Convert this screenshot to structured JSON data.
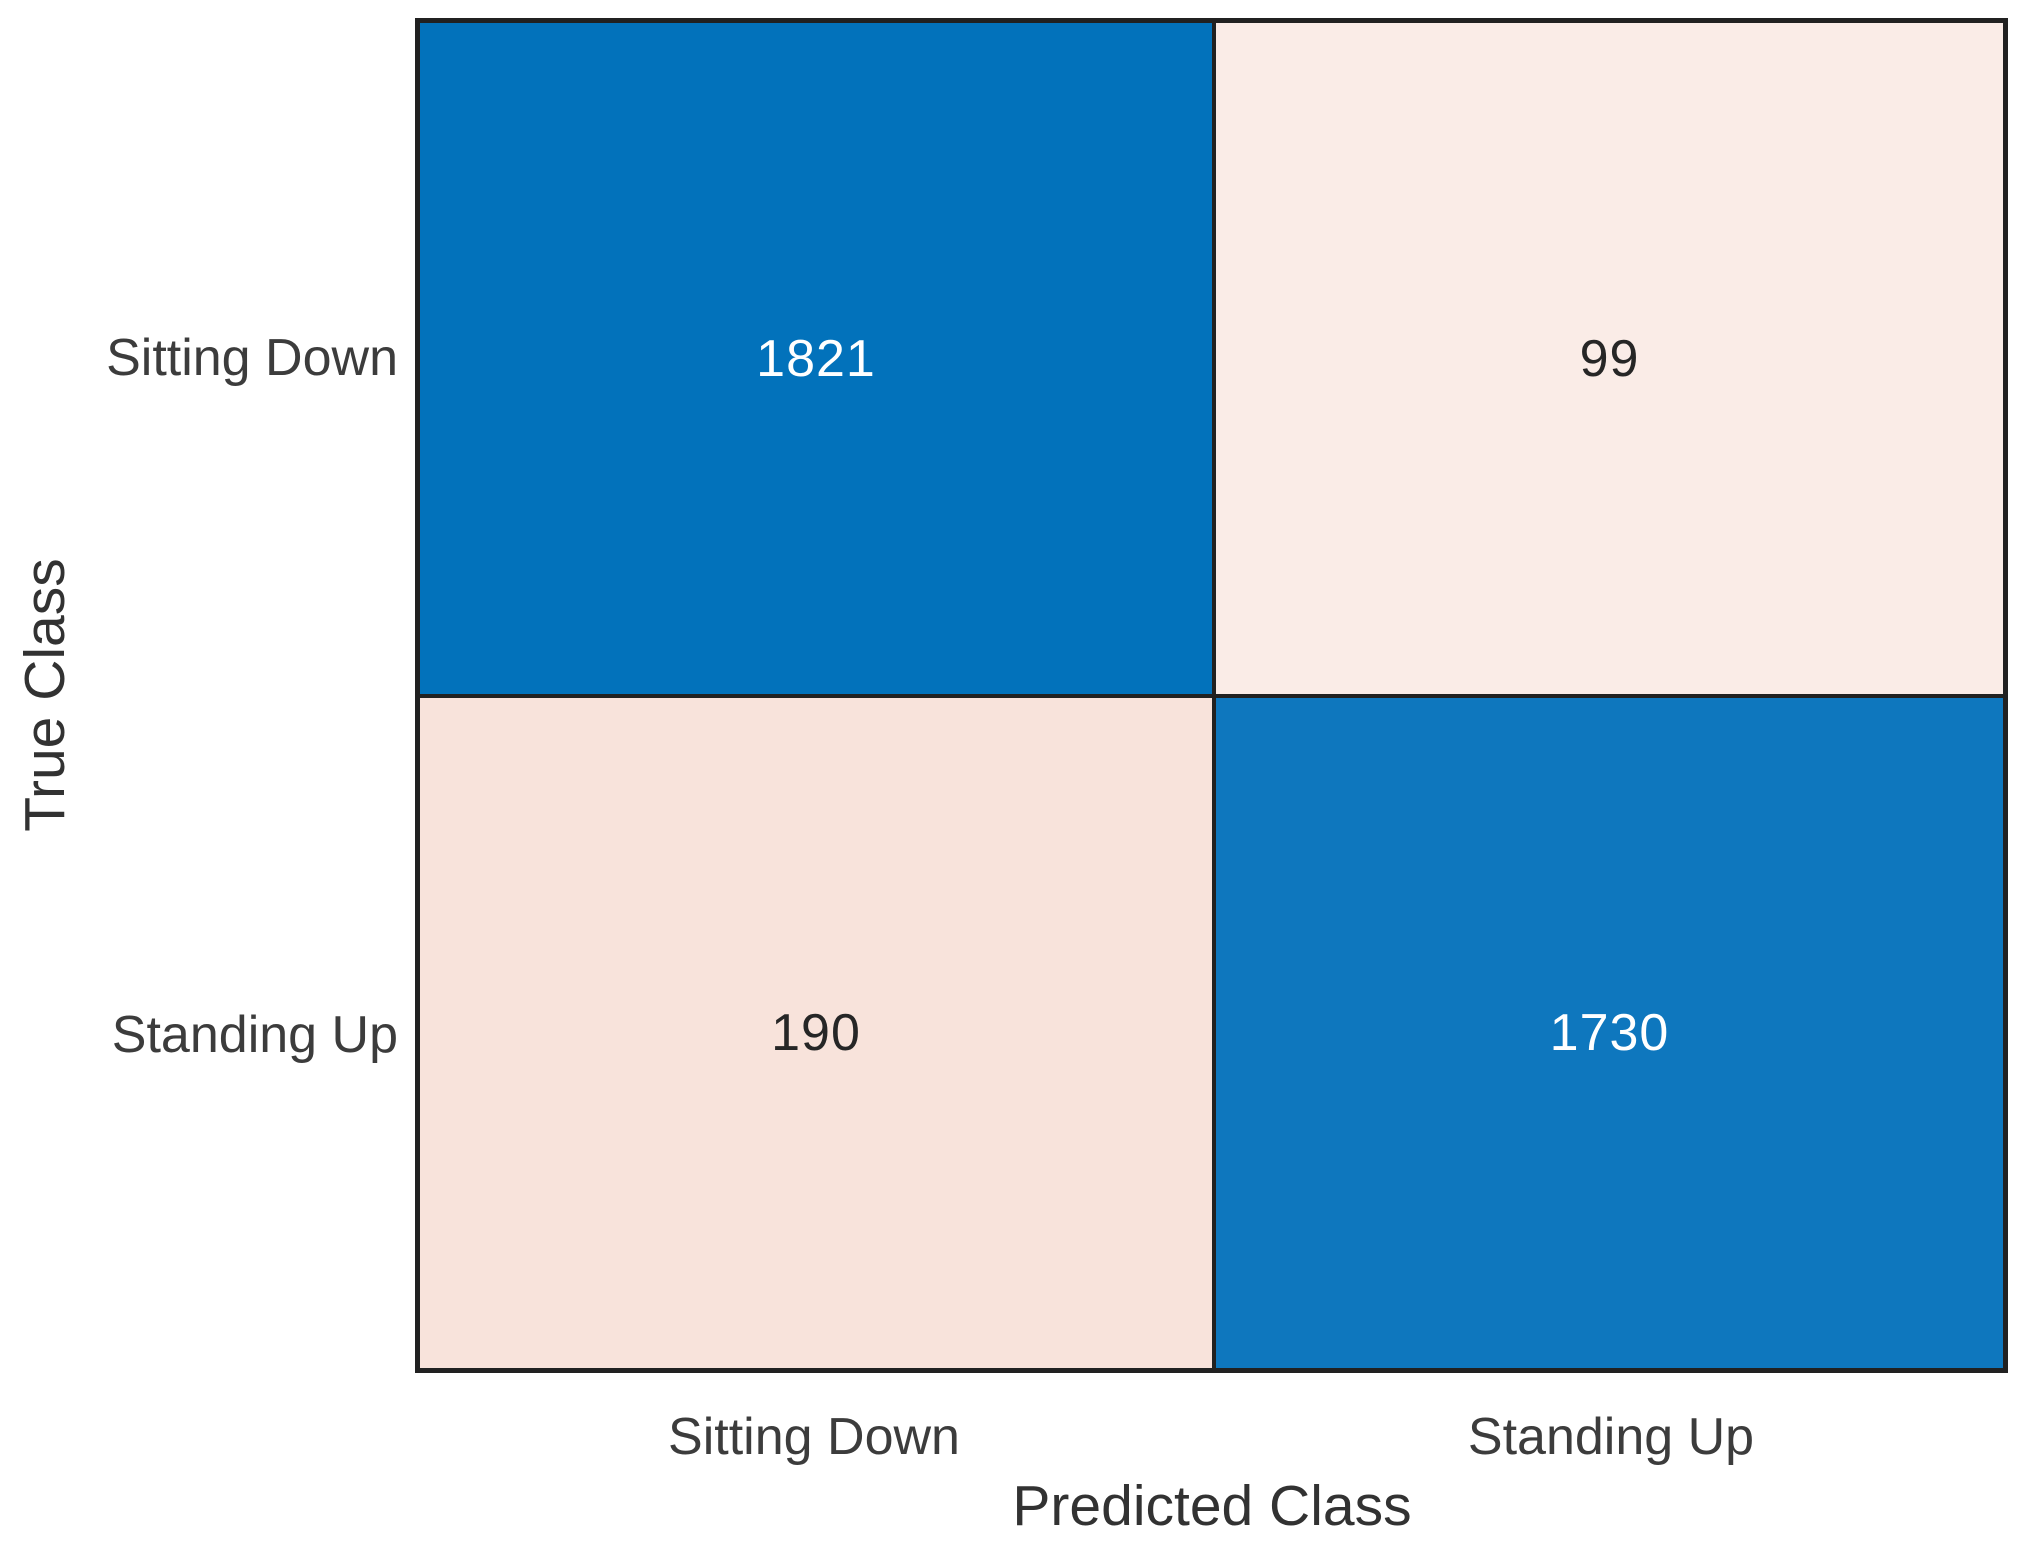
{
  "chart_data": {
    "type": "heatmap",
    "subtype": "confusion-matrix",
    "title": "",
    "xlabel": "Predicted Class",
    "ylabel": "True Class",
    "x_categories": [
      "Sitting Down",
      "Standing Up"
    ],
    "y_categories": [
      "Sitting Down",
      "Standing Up"
    ],
    "matrix": [
      [
        1821,
        99
      ],
      [
        190,
        1730
      ]
    ],
    "cells": [
      {
        "true_class": "Sitting Down",
        "predicted_class": "Sitting Down",
        "value": "1821",
        "bg": "#0272BB",
        "fg": "#FFFFFF"
      },
      {
        "true_class": "Sitting Down",
        "predicted_class": "Standing Up",
        "value": "99",
        "bg": "#FAECE7",
        "fg": "#262626"
      },
      {
        "true_class": "Standing Up",
        "predicted_class": "Sitting Down",
        "value": "190",
        "bg": "#F8E3DB",
        "fg": "#262626"
      },
      {
        "true_class": "Standing Up",
        "predicted_class": "Standing Up",
        "value": "1730",
        "bg": "#0E77BE",
        "fg": "#FFFFFF"
      }
    ],
    "colors": {
      "diagonal": "#0272BB",
      "off_diagonal": "#F8E3DB",
      "grid_border": "#212121",
      "background": "#FFFFFF",
      "tick_label": "#3C3C3C",
      "axis_title": "#323232"
    },
    "legend_position": "none",
    "grid": "off"
  }
}
